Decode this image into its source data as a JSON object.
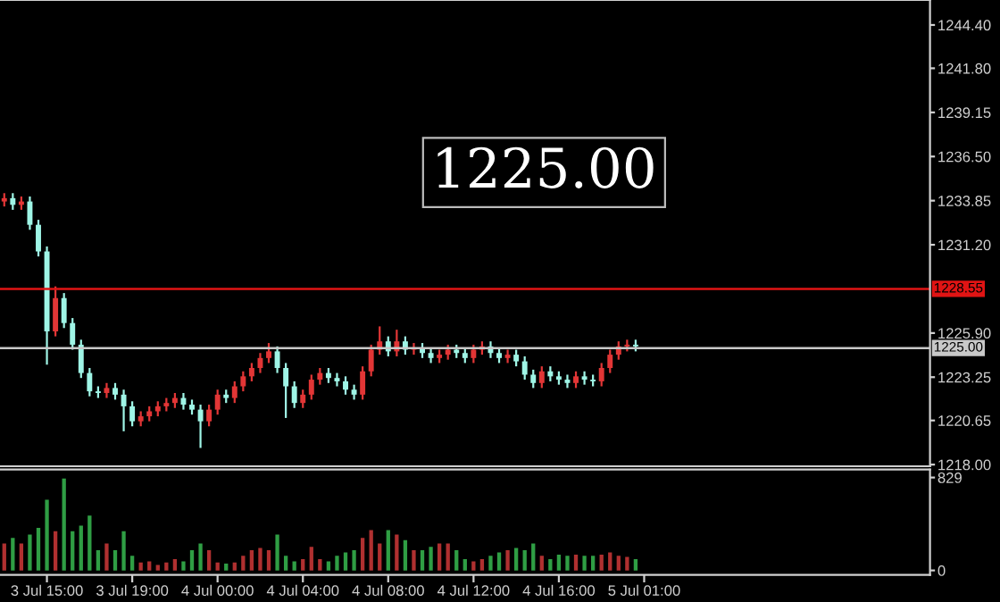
{
  "chart_data": [
    {
      "type": "candlestick",
      "tick_labels": "y",
      "legend": false,
      "grid": false,
      "categories": [
        null,
        null,
        null,
        null,
        null,
        null,
        null,
        null,
        null,
        null,
        null,
        null,
        null,
        null,
        null,
        null,
        null,
        null,
        null,
        null,
        null,
        null,
        null,
        null,
        null,
        null,
        null,
        null,
        null,
        null,
        null,
        null,
        null,
        null,
        null,
        null,
        null,
        null,
        null,
        null,
        null,
        null,
        null,
        null,
        null,
        null,
        null,
        null,
        null,
        null,
        null,
        null,
        null,
        null,
        null,
        null,
        null,
        null,
        null,
        null,
        null,
        null,
        null,
        null,
        null,
        null,
        null,
        null,
        null,
        null,
        null,
        null,
        null,
        null,
        null,
        null,
        null,
        null,
        null,
        null,
        null,
        null,
        null,
        null,
        null,
        null,
        null,
        null,
        null,
        null,
        null,
        null,
        null,
        null,
        null,
        null,
        null,
        null,
        null,
        null,
        null,
        null,
        null,
        null,
        null,
        null,
        null,
        null,
        null
      ],
      "ohlc": [
        [
          1233.8,
          1234.3,
          1233.5,
          1234.0
        ],
        [
          1234.0,
          1234.3,
          1233.3,
          1233.6
        ],
        [
          1233.6,
          1234.1,
          1233.3,
          1233.8
        ],
        [
          1233.8,
          1234.1,
          1232.1,
          1232.4
        ],
        [
          1232.4,
          1232.7,
          1230.5,
          1230.8
        ],
        [
          1230.8,
          1231.1,
          1224.0,
          1226.0
        ],
        [
          1226.0,
          1228.7,
          1225.7,
          1228.0
        ],
        [
          1228.0,
          1228.3,
          1226.2,
          1226.5
        ],
        [
          1226.5,
          1226.8,
          1224.9,
          1225.2
        ],
        [
          1225.2,
          1225.5,
          1223.2,
          1223.5
        ],
        [
          1223.5,
          1223.8,
          1222.1,
          1222.4
        ],
        [
          1222.4,
          1222.7,
          1222.0,
          1222.3
        ],
        [
          1222.3,
          1222.9,
          1222.0,
          1222.6
        ],
        [
          1222.6,
          1222.9,
          1221.9,
          1222.2
        ],
        [
          1222.2,
          1222.5,
          1220.0,
          1221.5
        ],
        [
          1221.5,
          1221.8,
          1220.3,
          1220.6
        ],
        [
          1220.6,
          1221.2,
          1220.3,
          1220.9
        ],
        [
          1220.9,
          1221.5,
          1220.6,
          1221.2
        ],
        [
          1221.2,
          1221.8,
          1220.9,
          1221.5
        ],
        [
          1221.5,
          1222.0,
          1221.2,
          1221.7
        ],
        [
          1221.7,
          1222.3,
          1221.4,
          1222.0
        ],
        [
          1222.0,
          1222.3,
          1221.3,
          1221.6
        ],
        [
          1221.6,
          1221.9,
          1221.0,
          1221.3
        ],
        [
          1221.3,
          1221.6,
          1219.0,
          1220.6
        ],
        [
          1220.6,
          1221.6,
          1220.3,
          1221.3
        ],
        [
          1221.3,
          1222.5,
          1221.0,
          1222.2
        ],
        [
          1222.2,
          1222.5,
          1221.7,
          1222.0
        ],
        [
          1222.0,
          1223.0,
          1221.7,
          1222.7
        ],
        [
          1222.7,
          1223.6,
          1222.4,
          1223.3
        ],
        [
          1223.3,
          1224.1,
          1223.0,
          1223.8
        ],
        [
          1223.8,
          1224.7,
          1223.5,
          1224.4
        ],
        [
          1224.4,
          1225.3,
          1224.1,
          1224.8
        ],
        [
          1224.8,
          1225.1,
          1223.5,
          1223.8
        ],
        [
          1223.8,
          1224.1,
          1220.8,
          1222.7
        ],
        [
          1222.7,
          1223.0,
          1221.4,
          1221.7
        ],
        [
          1221.7,
          1222.5,
          1221.4,
          1222.2
        ],
        [
          1222.2,
          1223.4,
          1221.9,
          1223.1
        ],
        [
          1223.1,
          1223.8,
          1222.8,
          1223.5
        ],
        [
          1223.5,
          1223.8,
          1222.9,
          1223.2
        ],
        [
          1223.2,
          1223.5,
          1222.7,
          1223.0
        ],
        [
          1223.0,
          1223.3,
          1222.2,
          1222.5
        ],
        [
          1222.5,
          1222.8,
          1221.9,
          1222.2
        ],
        [
          1222.2,
          1223.9,
          1221.9,
          1223.6
        ],
        [
          1223.6,
          1225.2,
          1223.3,
          1224.9
        ],
        [
          1224.9,
          1226.3,
          1224.6,
          1225.4
        ],
        [
          1225.4,
          1225.7,
          1224.5,
          1224.8
        ],
        [
          1224.8,
          1226.1,
          1224.5,
          1225.4
        ],
        [
          1225.4,
          1225.7,
          1224.6,
          1224.9
        ],
        [
          1224.9,
          1225.3,
          1224.6,
          1225.0
        ],
        [
          1225.0,
          1225.3,
          1224.4,
          1224.7
        ],
        [
          1224.7,
          1225.0,
          1224.1,
          1224.4
        ],
        [
          1224.4,
          1224.9,
          1224.1,
          1224.6
        ],
        [
          1224.6,
          1225.2,
          1224.3,
          1224.9
        ],
        [
          1224.9,
          1225.2,
          1224.4,
          1224.7
        ],
        [
          1224.7,
          1225.0,
          1224.1,
          1224.4
        ],
        [
          1224.4,
          1225.2,
          1224.1,
          1224.9
        ],
        [
          1224.9,
          1225.4,
          1224.6,
          1225.1
        ],
        [
          1225.1,
          1225.4,
          1224.4,
          1224.7
        ],
        [
          1224.7,
          1225.0,
          1224.1,
          1224.4
        ],
        [
          1224.4,
          1224.9,
          1224.1,
          1224.6
        ],
        [
          1224.6,
          1224.9,
          1223.9,
          1224.2
        ],
        [
          1224.2,
          1224.5,
          1223.1,
          1223.4
        ],
        [
          1223.4,
          1223.7,
          1222.6,
          1222.9
        ],
        [
          1222.9,
          1223.9,
          1222.6,
          1223.6
        ],
        [
          1223.6,
          1223.9,
          1223.0,
          1223.3
        ],
        [
          1223.3,
          1223.6,
          1222.8,
          1223.1
        ],
        [
          1223.1,
          1223.4,
          1222.6,
          1222.9
        ],
        [
          1222.9,
          1223.6,
          1222.6,
          1223.3
        ],
        [
          1223.3,
          1223.6,
          1222.8,
          1223.1
        ],
        [
          1223.1,
          1223.4,
          1222.7,
          1223.0
        ],
        [
          1223.0,
          1224.1,
          1222.7,
          1223.8
        ],
        [
          1223.8,
          1224.9,
          1223.5,
          1224.6
        ],
        [
          1224.6,
          1225.4,
          1224.3,
          1225.1
        ],
        [
          1225.1,
          1225.5,
          1224.8,
          1225.2
        ],
        [
          1225.2,
          1225.5,
          1224.8,
          1225.1
        ],
        null,
        null,
        null,
        null,
        null,
        null,
        null,
        null,
        null,
        null,
        null,
        null,
        null,
        null,
        null,
        null,
        null,
        null,
        null,
        null,
        null,
        null,
        null,
        null,
        null,
        null,
        null,
        null,
        null,
        null,
        null,
        null,
        null,
        null
      ],
      "colors": [
        "#e23636",
        "#9ff5e6",
        "#e23636",
        "#9ff5e6",
        "#9ff5e6",
        "#9ff5e6",
        "#e23636",
        "#9ff5e6",
        "#9ff5e6",
        "#9ff5e6",
        "#9ff5e6",
        "#9ff5e6",
        "#e23636",
        "#9ff5e6",
        "#9ff5e6",
        "#9ff5e6",
        "#e23636",
        "#e23636",
        "#e23636",
        "#e23636",
        "#e23636",
        "#9ff5e6",
        "#9ff5e6",
        "#9ff5e6",
        "#e23636",
        "#e23636",
        "#9ff5e6",
        "#e23636",
        "#e23636",
        "#e23636",
        "#e23636",
        "#e23636",
        "#9ff5e6",
        "#9ff5e6",
        "#9ff5e6",
        "#e23636",
        "#e23636",
        "#e23636",
        "#9ff5e6",
        "#9ff5e6",
        "#9ff5e6",
        "#9ff5e6",
        "#e23636",
        "#e23636",
        "#e23636",
        "#9ff5e6",
        "#e23636",
        "#9ff5e6",
        "#e23636",
        "#9ff5e6",
        "#9ff5e6",
        "#e23636",
        "#e23636",
        "#9ff5e6",
        "#9ff5e6",
        "#e23636",
        "#e23636",
        "#9ff5e6",
        "#9ff5e6",
        "#e23636",
        "#9ff5e6",
        "#9ff5e6",
        "#9ff5e6",
        "#e23636",
        "#9ff5e6",
        "#9ff5e6",
        "#9ff5e6",
        "#e23636",
        "#9ff5e6",
        "#9ff5e6",
        "#e23636",
        "#e23636",
        "#e23636",
        "#e23636",
        "#9ff5e6",
        null,
        null,
        null,
        null,
        null,
        null,
        null,
        null,
        null,
        null,
        null,
        null,
        null,
        null,
        null,
        null,
        null,
        null,
        null,
        null,
        null,
        null,
        null,
        null,
        null,
        null,
        null,
        null,
        null,
        null,
        null,
        null,
        null,
        null
      ],
      "ylim": [
        1217.9,
        1245.9
      ],
      "yticks": [
        {
          "value": 1218.0,
          "label": "1218.00"
        },
        {
          "value": 1220.65,
          "label": "1220.65"
        },
        {
          "value": 1223.25,
          "label": "1223.25"
        },
        {
          "value": 1225.9,
          "label": "1225.90"
        },
        {
          "value": 1231.2,
          "label": "1231.20"
        },
        {
          "value": 1233.85,
          "label": "1233.85"
        },
        {
          "value": 1236.5,
          "label": "1236.50"
        },
        {
          "value": 1239.15,
          "label": "1239.15"
        },
        {
          "value": 1241.8,
          "label": "1241.80"
        },
        {
          "value": 1244.4,
          "label": "1244.40"
        }
      ],
      "ref_lines": [
        {
          "axis": "y",
          "value": 1228.55,
          "label": "1228.55",
          "color": "#e01414"
        },
        {
          "axis": "y",
          "value": 1225.0,
          "label": "1225.00",
          "color": "#c8c8c8"
        }
      ],
      "annotations": [
        "1225.00"
      ]
    },
    {
      "type": "bar",
      "legend": false,
      "grid": false,
      "categories": [
        null,
        null,
        null,
        null,
        null,
        "3 Jul 15:00",
        null,
        null,
        null,
        null,
        null,
        null,
        null,
        null,
        null,
        "3 Jul 19:00",
        null,
        null,
        null,
        null,
        null,
        null,
        null,
        null,
        null,
        "4 Jul 00:00",
        null,
        null,
        null,
        null,
        null,
        null,
        null,
        null,
        null,
        "4 Jul 04:00",
        null,
        null,
        null,
        null,
        null,
        null,
        null,
        null,
        null,
        "4 Jul 08:00",
        null,
        null,
        null,
        null,
        null,
        null,
        null,
        null,
        null,
        "4 Jul 12:00",
        null,
        null,
        null,
        null,
        null,
        null,
        null,
        null,
        null,
        "4 Jul 16:00",
        null,
        null,
        null,
        null,
        null,
        null,
        null,
        null,
        null,
        "5 Jul 01:00",
        null,
        null,
        null,
        null,
        null,
        null,
        null,
        null,
        null,
        null,
        null,
        null,
        null,
        null,
        null,
        null,
        null,
        null,
        null,
        null,
        null,
        null,
        null,
        null,
        null,
        null,
        null,
        null,
        null,
        null,
        null,
        null,
        null
      ],
      "values": [
        240,
        290,
        240,
        320,
        380,
        630,
        350,
        820,
        350,
        400,
        490,
        180,
        240,
        180,
        350,
        130,
        70,
        80,
        50,
        70,
        100,
        80,
        180,
        240,
        180,
        70,
        60,
        70,
        130,
        180,
        200,
        180,
        320,
        130,
        80,
        100,
        210,
        100,
        80,
        130,
        160,
        180,
        290,
        360,
        240,
        360,
        320,
        270,
        180,
        180,
        210,
        240,
        240,
        180,
        100,
        80,
        100,
        130,
        160,
        180,
        200,
        180,
        240,
        130,
        100,
        140,
        130,
        140,
        130,
        130,
        140,
        160,
        130,
        120,
        100,
        null,
        null,
        null,
        null,
        null,
        null,
        null,
        null,
        null,
        null,
        null,
        null,
        null,
        null,
        null,
        null,
        null,
        null,
        null,
        null,
        null,
        null,
        null,
        null,
        null,
        null,
        null,
        null,
        null,
        null,
        null,
        null,
        null,
        null
      ],
      "colors": [
        "#b03030",
        "#2f9e44",
        "#b03030",
        "#2f9e44",
        "#2f9e44",
        "#2f9e44",
        "#b03030",
        "#2f9e44",
        "#2f9e44",
        "#2f9e44",
        "#2f9e44",
        "#2f9e44",
        "#b03030",
        "#2f9e44",
        "#2f9e44",
        "#2f9e44",
        "#b03030",
        "#b03030",
        "#b03030",
        "#b03030",
        "#b03030",
        "#2f9e44",
        "#2f9e44",
        "#2f9e44",
        "#b03030",
        "#b03030",
        "#2f9e44",
        "#b03030",
        "#b03030",
        "#b03030",
        "#b03030",
        "#b03030",
        "#2f9e44",
        "#2f9e44",
        "#2f9e44",
        "#b03030",
        "#b03030",
        "#b03030",
        "#2f9e44",
        "#2f9e44",
        "#2f9e44",
        "#2f9e44",
        "#b03030",
        "#b03030",
        "#b03030",
        "#2f9e44",
        "#b03030",
        "#2f9e44",
        "#b03030",
        "#2f9e44",
        "#2f9e44",
        "#b03030",
        "#b03030",
        "#2f9e44",
        "#2f9e44",
        "#b03030",
        "#b03030",
        "#2f9e44",
        "#2f9e44",
        "#b03030",
        "#2f9e44",
        "#2f9e44",
        "#2f9e44",
        "#b03030",
        "#2f9e44",
        "#2f9e44",
        "#2f9e44",
        "#b03030",
        "#2f9e44",
        "#2f9e44",
        "#b03030",
        "#b03030",
        "#b03030",
        "#b03030",
        "#2f9e44",
        null,
        null,
        null,
        null,
        null,
        null,
        null,
        null,
        null,
        null,
        null,
        null,
        null,
        null,
        null,
        null,
        null,
        null,
        null,
        null,
        null,
        null,
        null,
        null,
        null,
        null,
        null,
        null,
        null,
        null,
        null,
        null,
        null,
        null
      ],
      "ylim": [
        -40,
        900
      ],
      "yticks": [
        0,
        829
      ]
    }
  ]
}
